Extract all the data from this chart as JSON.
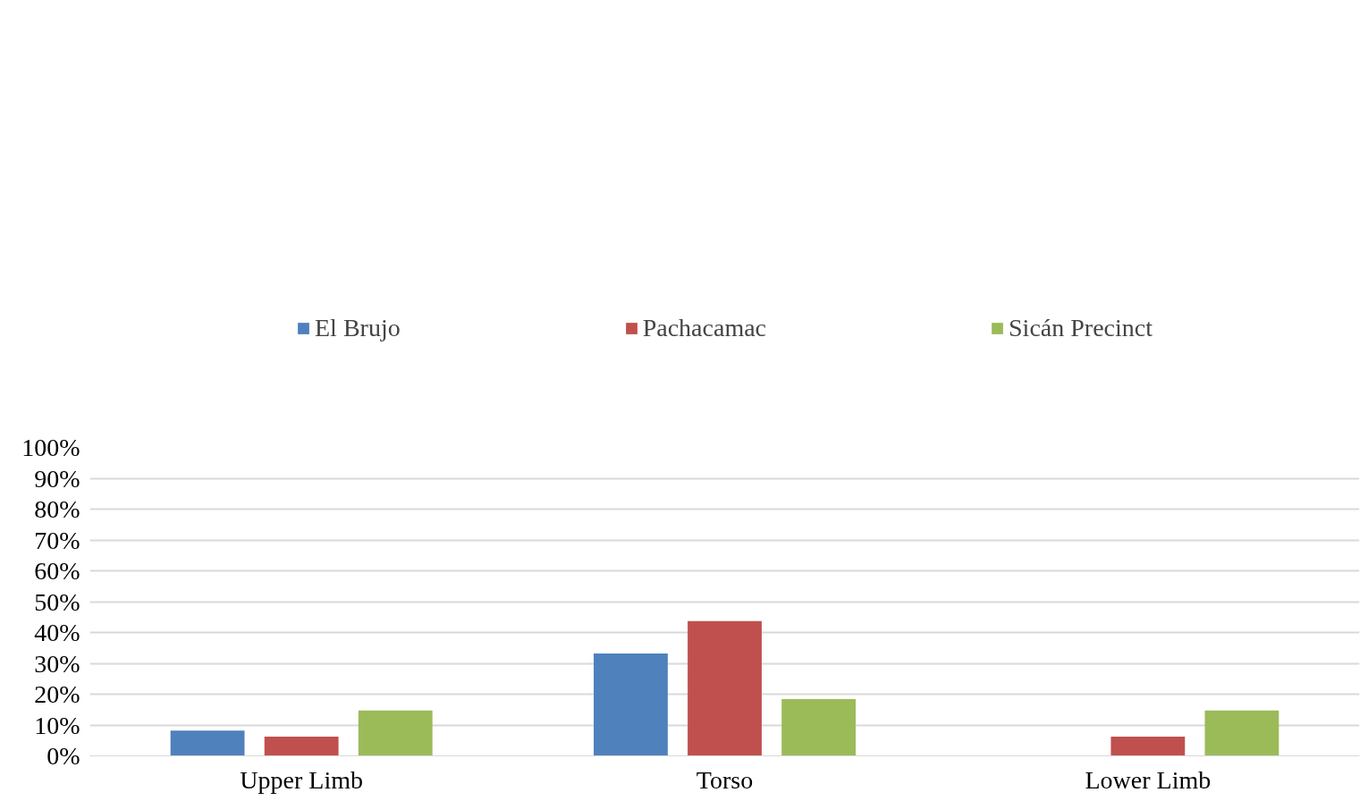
{
  "chart_data": {
    "type": "bar",
    "categories": [
      "Upper Limb",
      "Torso",
      "Lower Limb"
    ],
    "series": [
      {
        "name": "El Brujo",
        "color": "#4f81bd",
        "values": [
          8.2,
          33.2,
          0
        ]
      },
      {
        "name": "Pachacamac",
        "color": "#c0504d",
        "values": [
          6.2,
          43.7,
          6.2
        ]
      },
      {
        "name": "Sicán Precinct",
        "color": "#9bbb59",
        "values": [
          14.7,
          18.4,
          14.7
        ]
      }
    ],
    "ylim": [
      0,
      100
    ],
    "yticks": [
      {
        "value": 0,
        "label": "0%"
      },
      {
        "value": 10,
        "label": "10%"
      },
      {
        "value": 20,
        "label": "20%"
      },
      {
        "value": 30,
        "label": "30%"
      },
      {
        "value": 40,
        "label": "40%"
      },
      {
        "value": 50,
        "label": "50%"
      },
      {
        "value": 60,
        "label": "60%"
      },
      {
        "value": 70,
        "label": "70%"
      },
      {
        "value": 80,
        "label": "80%"
      },
      {
        "value": 90,
        "label": "90%"
      },
      {
        "value": 100,
        "label": "100%"
      }
    ],
    "grid": "y",
    "legend": "top"
  }
}
